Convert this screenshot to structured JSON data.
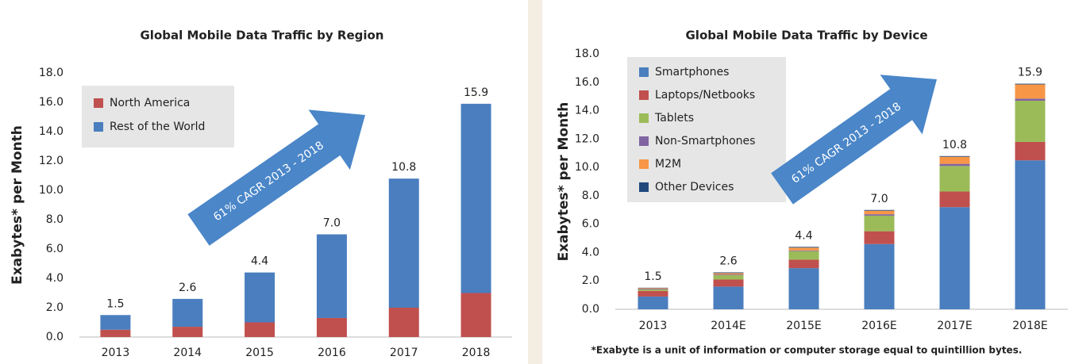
{
  "chart_data": [
    {
      "type": "stacked_bar",
      "title": "Global Mobile Data Traffic by Region",
      "y_label": "Exabytes* per Month",
      "categories": [
        "2013",
        "2014",
        "2015",
        "2016",
        "2017",
        "2018"
      ],
      "series": [
        {
          "name": "North America",
          "color": "#c0504d",
          "values": [
            0.5,
            0.7,
            1.0,
            1.3,
            2.0,
            3.0
          ]
        },
        {
          "name": "Rest of the World",
          "color": "#4a7ebf",
          "values": [
            1.0,
            1.9,
            3.4,
            5.7,
            8.8,
            12.9
          ]
        }
      ],
      "totals": [
        1.5,
        2.6,
        4.4,
        7.0,
        10.8,
        15.9
      ],
      "total_labels": [
        "1.5",
        "2.6",
        "4.4",
        "7.0",
        "10.8",
        "15.9"
      ],
      "ylim": [
        0,
        18
      ],
      "yticks": [
        {
          "value": 0,
          "label": "0.0"
        },
        {
          "value": 2,
          "label": "2.0"
        },
        {
          "value": 4,
          "label": "4.0"
        },
        {
          "value": 6,
          "label": "6.0"
        },
        {
          "value": 8,
          "label": "8.0"
        },
        {
          "value": 10,
          "label": "10.0"
        },
        {
          "value": 12,
          "label": "12.0"
        },
        {
          "value": 14,
          "label": "14.0"
        },
        {
          "value": 16,
          "label": "16.0"
        },
        {
          "value": 18,
          "label": "18.0"
        }
      ],
      "annotation": "61% CAGR 2013 - 2018"
    },
    {
      "type": "stacked_bar",
      "title": "Global Mobile Data Traffic by Device",
      "y_label": "Exabytes* per Month",
      "categories": [
        "2013",
        "2014E",
        "2015E",
        "2016E",
        "2017E",
        "2018E"
      ],
      "series": [
        {
          "name": "Smartphones",
          "color": "#4a7ebf",
          "values": [
            0.9,
            1.6,
            2.9,
            4.6,
            7.2,
            10.5
          ]
        },
        {
          "name": "Laptops/Netbooks",
          "color": "#c0504d",
          "values": [
            0.4,
            0.5,
            0.6,
            0.9,
            1.1,
            1.3
          ]
        },
        {
          "name": "Tablets",
          "color": "#9bbb59",
          "values": [
            0.1,
            0.3,
            0.6,
            1.1,
            1.8,
            2.9
          ]
        },
        {
          "name": "Non-Smartphones",
          "color": "#8064a2",
          "values": [
            0.05,
            0.05,
            0.05,
            0.1,
            0.15,
            0.15
          ]
        },
        {
          "name": "M2M",
          "color": "#f79646",
          "values": [
            0.05,
            0.1,
            0.2,
            0.25,
            0.5,
            1.0
          ]
        },
        {
          "name": "Other Devices",
          "color": "#1f497d",
          "values": [
            0.02,
            0.05,
            0.05,
            0.05,
            0.05,
            0.05
          ]
        }
      ],
      "totals": [
        1.5,
        2.6,
        4.4,
        7.0,
        10.8,
        15.9
      ],
      "total_labels": [
        "1.5",
        "2.6",
        "4.4",
        "7.0",
        "10.8",
        "15.9"
      ],
      "ylim": [
        0,
        18
      ],
      "yticks": [
        {
          "value": 0,
          "label": "0.0"
        },
        {
          "value": 2,
          "label": "2.0"
        },
        {
          "value": 4,
          "label": "4.0"
        },
        {
          "value": 6,
          "label": "6.0"
        },
        {
          "value": 8,
          "label": "8.0"
        },
        {
          "value": 10,
          "label": "10.0"
        },
        {
          "value": 12,
          "label": "12.0"
        },
        {
          "value": 14,
          "label": "14.0"
        },
        {
          "value": 16,
          "label": "16.0"
        },
        {
          "value": 18,
          "label": "18.0"
        }
      ],
      "annotation": "61% CAGR 2013 - 2018",
      "footnote": "*Exabyte is a unit of information or computer storage equal to quintillion bytes."
    }
  ]
}
